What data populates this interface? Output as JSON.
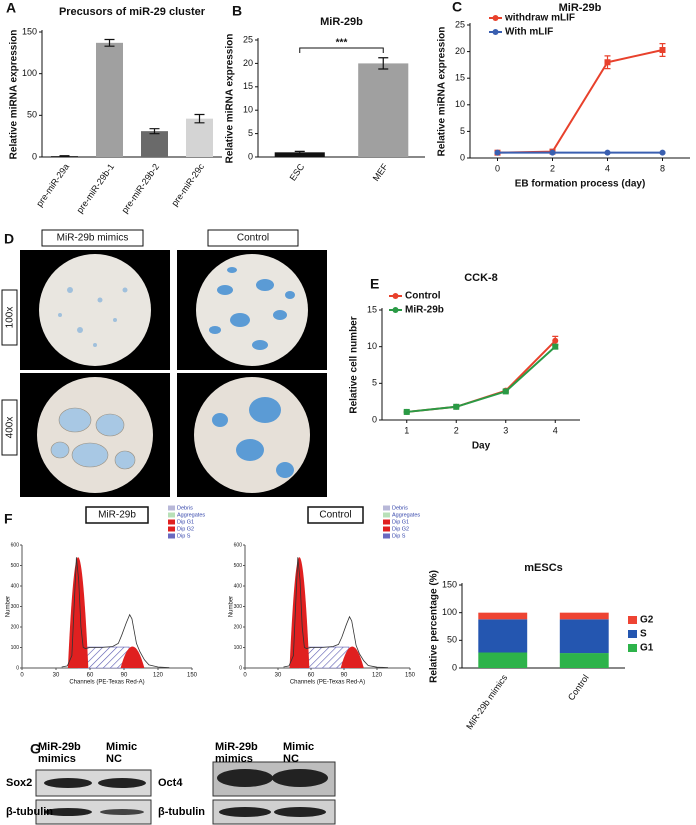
{
  "chart_data": [
    {
      "type": "bar",
      "panel": "A",
      "title": "Precusors of miR-29 cluster",
      "ylabel": "Relative miRNA expression",
      "categories": [
        "pre-miR-29a",
        "pre-miR-29b-1",
        "pre-miR-29b-2",
        "pre-miR-29c"
      ],
      "values": [
        1,
        137,
        31,
        46
      ],
      "errors": [
        0.5,
        4,
        3,
        5
      ],
      "colors": [
        "#111111",
        "#a0a0a0",
        "#6a6a6a",
        "#d4d4d4"
      ],
      "ylim": [
        0,
        150
      ],
      "yticks": [
        0,
        50,
        100,
        150
      ]
    },
    {
      "type": "bar",
      "panel": "B",
      "title": "MiR-29b",
      "ylabel": "Relative miRNA expression",
      "categories": [
        "ESC",
        "MEF"
      ],
      "values": [
        1,
        20
      ],
      "errors": [
        0.2,
        1.2
      ],
      "colors": [
        "#111111",
        "#a0a0a0"
      ],
      "annotation": "***",
      "ylim": [
        0,
        25
      ],
      "yticks": [
        0,
        5,
        10,
        15,
        20,
        25
      ]
    },
    {
      "type": "line",
      "panel": "C",
      "title": "MiR-29b",
      "ylabel": "Relative miRNA expression",
      "xlabel": "EB formation process (day)",
      "categories": [
        "0",
        "2",
        "4",
        "8"
      ],
      "series": [
        {
          "name": "withdraw mLIF",
          "color": "#e8412c",
          "marker": "square",
          "values": [
            1,
            1.2,
            18,
            20.3
          ],
          "errors": [
            0.2,
            0.3,
            1.2,
            1.2
          ]
        },
        {
          "name": "With mLIF",
          "color": "#3a5fb0",
          "marker": "circle",
          "values": [
            1,
            1,
            1,
            1
          ],
          "errors": [
            0.1,
            0.1,
            0.1,
            0.1
          ]
        }
      ],
      "ylim": [
        0,
        25
      ],
      "yticks": [
        0,
        5,
        10,
        15,
        20,
        25
      ]
    },
    {
      "type": "line",
      "panel": "E",
      "title": "CCK-8",
      "ylabel": "Relative cell number",
      "xlabel": "Day",
      "categories": [
        "1",
        "2",
        "3",
        "4"
      ],
      "series": [
        {
          "name": "Control",
          "color": "#e8412c",
          "marker": "circle",
          "values": [
            1.1,
            1.8,
            4,
            10.8
          ],
          "errors": [
            0.1,
            0.1,
            0.15,
            0.6
          ]
        },
        {
          "name": "MiR-29b",
          "color": "#2a9a45",
          "marker": "square",
          "values": [
            1.1,
            1.8,
            3.9,
            10
          ],
          "errors": [
            0.1,
            0.1,
            0.15,
            0.3
          ]
        }
      ],
      "ylim": [
        0,
        15
      ],
      "yticks": [
        0,
        5,
        10,
        15
      ]
    },
    {
      "type": "flow",
      "panel": "F",
      "sample": "MiR-29b",
      "ylabel": "Number",
      "xlabel": "Channels (PE-Texas Red-A)",
      "x": [
        35,
        40,
        44,
        46,
        48,
        50,
        52,
        54,
        56,
        60,
        70,
        80,
        85,
        88,
        92,
        95,
        97,
        99,
        101,
        104,
        108,
        112,
        120,
        130
      ],
      "values": [
        5,
        10,
        60,
        300,
        540,
        430,
        200,
        100,
        95,
        100,
        100,
        105,
        120,
        160,
        220,
        260,
        240,
        180,
        120,
        80,
        40,
        15,
        5,
        2
      ],
      "legend": [
        {
          "name": "Debris",
          "color": "#b8b8d8"
        },
        {
          "name": "Aggregates",
          "color": "#b8e0b8"
        },
        {
          "name": "Dip G1",
          "color": "#e02020"
        },
        {
          "name": "Dip G2",
          "color": "#e02020"
        },
        {
          "name": "Dip S",
          "color": "#6a6ac0"
        }
      ],
      "xlim": [
        0,
        150
      ],
      "xticks": [
        0,
        30,
        60,
        90,
        120,
        150
      ],
      "ylim": [
        0,
        600
      ],
      "yticks": [
        0,
        100,
        200,
        300,
        400,
        500,
        600
      ]
    },
    {
      "type": "flow",
      "sample": "Control",
      "ylabel": "Number",
      "xlabel": "Channels (PE-Texas Red-A)",
      "x": [
        35,
        40,
        44,
        46,
        48,
        50,
        52,
        54,
        56,
        60,
        70,
        80,
        85,
        88,
        92,
        95,
        97,
        99,
        101,
        104,
        108,
        112,
        120,
        130
      ],
      "values": [
        5,
        10,
        60,
        300,
        540,
        430,
        200,
        100,
        95,
        100,
        100,
        105,
        115,
        150,
        210,
        250,
        230,
        170,
        110,
        70,
        35,
        12,
        4,
        2
      ],
      "legend": [
        {
          "name": "Debris",
          "color": "#b8b8d8"
        },
        {
          "name": "Aggregates",
          "color": "#b8e0b8"
        },
        {
          "name": "Dip G1",
          "color": "#e02020"
        },
        {
          "name": "Dip G2",
          "color": "#e02020"
        },
        {
          "name": "Dip S",
          "color": "#6a6ac0"
        }
      ],
      "xlim": [
        0,
        150
      ],
      "xticks": [
        0,
        30,
        60,
        90,
        120,
        150
      ],
      "ylim": [
        0,
        600
      ],
      "yticks": [
        0,
        100,
        200,
        300,
        400,
        500,
        600
      ]
    },
    {
      "type": "stacked",
      "title": "mESCs",
      "ylabel": "Relative percentage (%)",
      "categories": [
        "MiR-29b mimics",
        "Control"
      ],
      "series": [
        {
          "name": "G1",
          "color": "#2db34a",
          "values": [
            28,
            27
          ]
        },
        {
          "name": "S",
          "color": "#2456b0",
          "values": [
            60,
            61
          ]
        },
        {
          "name": "G2",
          "color": "#ee4433",
          "values": [
            12,
            12
          ]
        }
      ],
      "ylim": [
        0,
        150
      ],
      "yticks": [
        0,
        50,
        100,
        150
      ]
    }
  ],
  "panel_d": {
    "panel": "D",
    "columns": [
      "MiR-29b mimics",
      "Control"
    ],
    "rows": [
      "100x",
      "400x"
    ]
  },
  "panel_g": {
    "panel": "G",
    "blots": [
      {
        "lanes": [
          "MiR-29b mimics",
          "Mimic NC"
        ],
        "proteins": [
          "Sox2",
          "β-tubulin"
        ]
      },
      {
        "lanes": [
          "MiR-29b mimics",
          "Mimic NC"
        ],
        "proteins": [
          "Oct4",
          "β-tubulin"
        ]
      }
    ]
  }
}
